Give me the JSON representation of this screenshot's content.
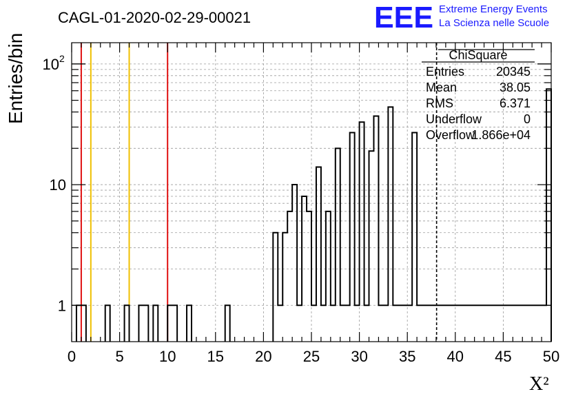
{
  "header": {
    "run_title": "CAGL-01-2020-02-29-00021",
    "logo_text": "EEE",
    "logo_line1": "Extreme Energy Events",
    "logo_line2": "La Scienza nelle Scuole"
  },
  "colors": {
    "logo_blue": "#1a1aff",
    "histogram": "#000000",
    "red_line": "#e01010",
    "yellow_line": "#f0c000",
    "grid": "#9a9a9a"
  },
  "stats_box": {
    "title": "ChiSquare",
    "rows": [
      {
        "label": "Entries",
        "value": "20345"
      },
      {
        "label": "Mean",
        "value": "38.05"
      },
      {
        "label": "RMS",
        "value": "6.371"
      },
      {
        "label": "Underflow",
        "value": "0"
      },
      {
        "label": "Overflow",
        "value": "1.866e+04"
      }
    ]
  },
  "chart_data": {
    "type": "bar",
    "histogram_style": "step",
    "title": "",
    "xlabel": "X²",
    "ylabel": "Entries/bin",
    "xlim": [
      0,
      50
    ],
    "ylim": [
      0.5,
      150
    ],
    "y_scale": "log",
    "grid": true,
    "bin_width": 0.5,
    "x_ticks": [
      0,
      5,
      10,
      15,
      20,
      25,
      30,
      35,
      40,
      45,
      50
    ],
    "y_tick_labels": [
      {
        "value": 1,
        "label": "1"
      },
      {
        "value": 10,
        "label": "10"
      },
      {
        "value": 100,
        "label": "10",
        "exponent": "2"
      }
    ],
    "bins": [
      {
        "x0": 0.5,
        "v": 1
      },
      {
        "x0": 1.0,
        "v": 1
      },
      {
        "x0": 3.5,
        "v": 1
      },
      {
        "x0": 5.5,
        "v": 1
      },
      {
        "x0": 7.0,
        "v": 1
      },
      {
        "x0": 7.5,
        "v": 1
      },
      {
        "x0": 8.5,
        "v": 1
      },
      {
        "x0": 10.0,
        "v": 1
      },
      {
        "x0": 10.5,
        "v": 1
      },
      {
        "x0": 12.0,
        "v": 1
      },
      {
        "x0": 16.0,
        "v": 1
      },
      {
        "x0": 21.0,
        "v": 4
      },
      {
        "x0": 21.5,
        "v": 1
      },
      {
        "x0": 22.0,
        "v": 4
      },
      {
        "x0": 22.5,
        "v": 6
      },
      {
        "x0": 23.0,
        "v": 10
      },
      {
        "x0": 23.5,
        "v": 1
      },
      {
        "x0": 24.0,
        "v": 8
      },
      {
        "x0": 24.5,
        "v": 6
      },
      {
        "x0": 25.0,
        "v": 1
      },
      {
        "x0": 25.5,
        "v": 14
      },
      {
        "x0": 26.0,
        "v": 1
      },
      {
        "x0": 26.5,
        "v": 6
      },
      {
        "x0": 27.0,
        "v": 1
      },
      {
        "x0": 27.5,
        "v": 20
      },
      {
        "x0": 28.0,
        "v": 1
      },
      {
        "x0": 28.5,
        "v": 1
      },
      {
        "x0": 29.0,
        "v": 27
      },
      {
        "x0": 29.5,
        "v": 1
      },
      {
        "x0": 30.0,
        "v": 33
      },
      {
        "x0": 30.5,
        "v": 1
      },
      {
        "x0": 31.0,
        "v": 19
      },
      {
        "x0": 31.5,
        "v": 37
      },
      {
        "x0": 32.0,
        "v": 1
      },
      {
        "x0": 32.5,
        "v": 1
      },
      {
        "x0": 33.0,
        "v": 44
      },
      {
        "x0": 33.5,
        "v": 1
      },
      {
        "x0": 34.0,
        "v": 1
      },
      {
        "x0": 34.5,
        "v": 1
      },
      {
        "x0": 35.0,
        "v": 1
      },
      {
        "x0": 35.5,
        "v": 27
      },
      {
        "x0": 36.0,
        "v": 1
      },
      {
        "x0": 36.5,
        "v": 1
      },
      {
        "x0": 37.0,
        "v": 1
      },
      {
        "x0": 37.5,
        "v": 1
      },
      {
        "x0": 38.0,
        "v": 1
      },
      {
        "x0": 38.5,
        "v": 1
      },
      {
        "x0": 39.0,
        "v": 1
      },
      {
        "x0": 39.5,
        "v": 1
      },
      {
        "x0": 40.0,
        "v": 1
      },
      {
        "x0": 40.5,
        "v": 1
      },
      {
        "x0": 41.0,
        "v": 1
      },
      {
        "x0": 41.5,
        "v": 1
      },
      {
        "x0": 42.0,
        "v": 1
      },
      {
        "x0": 42.5,
        "v": 1
      },
      {
        "x0": 43.0,
        "v": 1
      },
      {
        "x0": 43.5,
        "v": 1
      },
      {
        "x0": 44.0,
        "v": 1
      },
      {
        "x0": 44.5,
        "v": 1
      },
      {
        "x0": 45.0,
        "v": 1
      },
      {
        "x0": 45.5,
        "v": 1
      },
      {
        "x0": 46.0,
        "v": 1
      },
      {
        "x0": 46.5,
        "v": 1
      },
      {
        "x0": 47.0,
        "v": 1
      },
      {
        "x0": 47.5,
        "v": 1
      },
      {
        "x0": 48.0,
        "v": 1
      },
      {
        "x0": 48.5,
        "v": 1
      },
      {
        "x0": 49.0,
        "v": 1
      },
      {
        "x0": 49.5,
        "v": 62
      }
    ],
    "vertical_lines": [
      {
        "x": 1,
        "color": "#e01010",
        "style": "solid"
      },
      {
        "x": 2,
        "color": "#f0c000",
        "style": "solid"
      },
      {
        "x": 6,
        "color": "#f0c000",
        "style": "solid"
      },
      {
        "x": 10,
        "color": "#e01010",
        "style": "solid"
      },
      {
        "x": 38.05,
        "color": "#000000",
        "style": "dashed"
      }
    ]
  }
}
